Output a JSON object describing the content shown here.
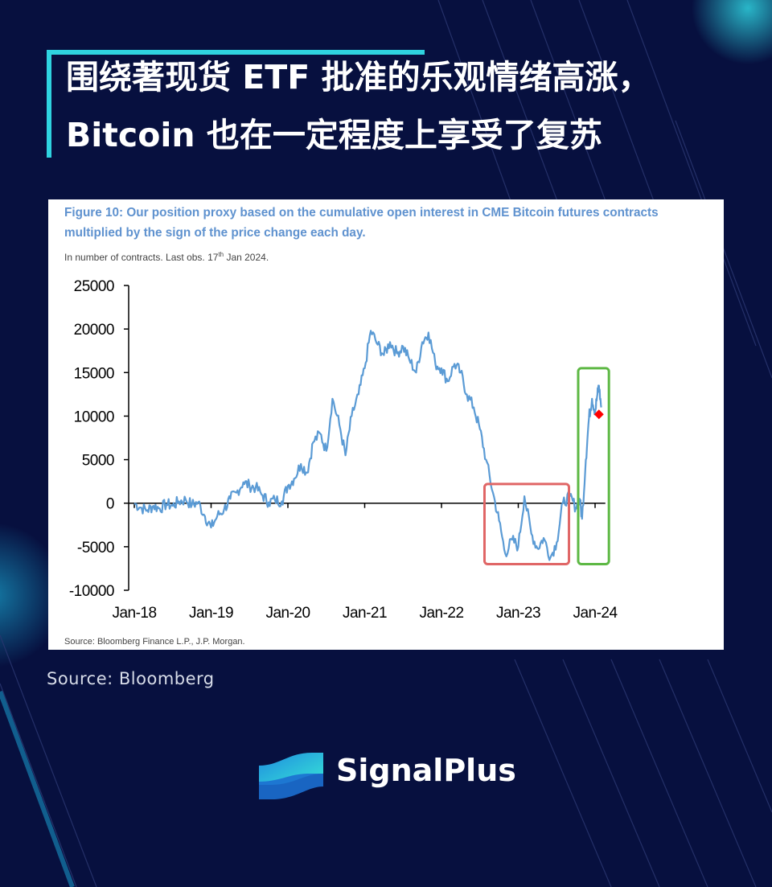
{
  "headline": {
    "line1": "围绕著现货 ETF 批准的乐观情绪高涨，",
    "line2": "Bitcoin 也在一定程度上享受了复苏"
  },
  "figure": {
    "title": "Figure 10: Our position proxy based on the cumulative open interest in CME Bitcoin futures contracts multiplied by the sign of the price change each day.",
    "subtitle_pre": "In number of contracts. Last obs. 17",
    "subtitle_sup": "th",
    "subtitle_post": " Jan 2024.",
    "source": "Source: Bloomberg Finance L.P., J.P. Morgan."
  },
  "source_caption": "Source: Bloomberg",
  "brand": {
    "name": "SignalPlus"
  },
  "colors": {
    "background": "#07103f",
    "accent": "#2fd3e0",
    "line": "#5b9bd5",
    "red_box": "#e06666",
    "green_box": "#5db844",
    "marker": "#ff0000"
  },
  "chart_data": {
    "type": "line",
    "x_tick_labels": [
      "Jan-18",
      "Jan-19",
      "Jan-20",
      "Jan-21",
      "Jan-22",
      "Jan-23",
      "Jan-24"
    ],
    "y_tick_labels": [
      "25000",
      "20000",
      "15000",
      "10000",
      "5000",
      "0",
      "-5000",
      "-10000"
    ],
    "ylim": [
      -10000,
      25000
    ],
    "xlim": [
      2018.0,
      2024.0
    ],
    "series": [
      {
        "values": [
          [
            2018.0,
            0
          ],
          [
            2018.08,
            -500
          ],
          [
            2018.17,
            -800
          ],
          [
            2018.25,
            -300
          ],
          [
            2018.33,
            -600
          ],
          [
            2018.42,
            -100
          ],
          [
            2018.5,
            -300
          ],
          [
            2018.58,
            200
          ],
          [
            2018.67,
            400
          ],
          [
            2018.75,
            -200
          ],
          [
            2018.83,
            100
          ],
          [
            2018.92,
            -1500
          ],
          [
            2019.0,
            -2800
          ],
          [
            2019.08,
            -1500
          ],
          [
            2019.17,
            -700
          ],
          [
            2019.25,
            500
          ],
          [
            2019.33,
            1200
          ],
          [
            2019.42,
            2400
          ],
          [
            2019.5,
            2000
          ],
          [
            2019.58,
            1800
          ],
          [
            2019.67,
            900
          ],
          [
            2019.75,
            100
          ],
          [
            2019.83,
            400
          ],
          [
            2019.92,
            200
          ],
          [
            2020.0,
            2000
          ],
          [
            2020.08,
            2800
          ],
          [
            2020.17,
            4500
          ],
          [
            2020.25,
            3500
          ],
          [
            2020.33,
            7000
          ],
          [
            2020.42,
            8000
          ],
          [
            2020.5,
            6000
          ],
          [
            2020.58,
            12000
          ],
          [
            2020.67,
            9000
          ],
          [
            2020.75,
            5500
          ],
          [
            2020.83,
            10000
          ],
          [
            2020.92,
            12500
          ],
          [
            2021.0,
            15500
          ],
          [
            2021.08,
            19800
          ],
          [
            2021.17,
            18200
          ],
          [
            2021.25,
            17000
          ],
          [
            2021.33,
            18500
          ],
          [
            2021.42,
            17200
          ],
          [
            2021.5,
            18000
          ],
          [
            2021.58,
            16500
          ],
          [
            2021.67,
            15000
          ],
          [
            2021.75,
            18500
          ],
          [
            2021.83,
            19600
          ],
          [
            2021.92,
            16000
          ],
          [
            2022.0,
            15500
          ],
          [
            2022.08,
            14000
          ],
          [
            2022.17,
            16000
          ],
          [
            2022.25,
            15000
          ],
          [
            2022.33,
            12500
          ],
          [
            2022.42,
            11000
          ],
          [
            2022.5,
            8500
          ],
          [
            2022.58,
            5000
          ],
          [
            2022.67,
            1200
          ],
          [
            2022.75,
            -2000
          ],
          [
            2022.83,
            -5800
          ],
          [
            2022.92,
            -4200
          ],
          [
            2023.0,
            -5000
          ],
          [
            2023.08,
            800
          ],
          [
            2023.17,
            -3500
          ],
          [
            2023.25,
            -5200
          ],
          [
            2023.33,
            -4000
          ],
          [
            2023.42,
            -6200
          ],
          [
            2023.5,
            -4500
          ],
          [
            2023.58,
            0
          ],
          [
            2023.67,
            800
          ],
          [
            2023.75,
            -500
          ],
          [
            2023.8,
            500
          ],
          [
            2023.83,
            -1800
          ],
          [
            2023.88,
            5000
          ],
          [
            2023.92,
            9800
          ],
          [
            2023.96,
            12000
          ],
          [
            2024.0,
            10500
          ],
          [
            2024.03,
            12500
          ],
          [
            2024.05,
            13500
          ],
          [
            2024.08,
            11000
          ]
        ]
      }
    ],
    "marker": {
      "x": 2024.05,
      "y": 10200,
      "shape": "diamond"
    },
    "highlight_boxes": [
      {
        "color": "red",
        "x_range": [
          2022.56,
          2023.66
        ],
        "y_range": [
          -7000,
          2200
        ]
      },
      {
        "color": "green",
        "x_range": [
          2023.78,
          2024.18
        ],
        "y_range": [
          -7000,
          15500
        ]
      }
    ],
    "grid": false,
    "legend": "none"
  }
}
